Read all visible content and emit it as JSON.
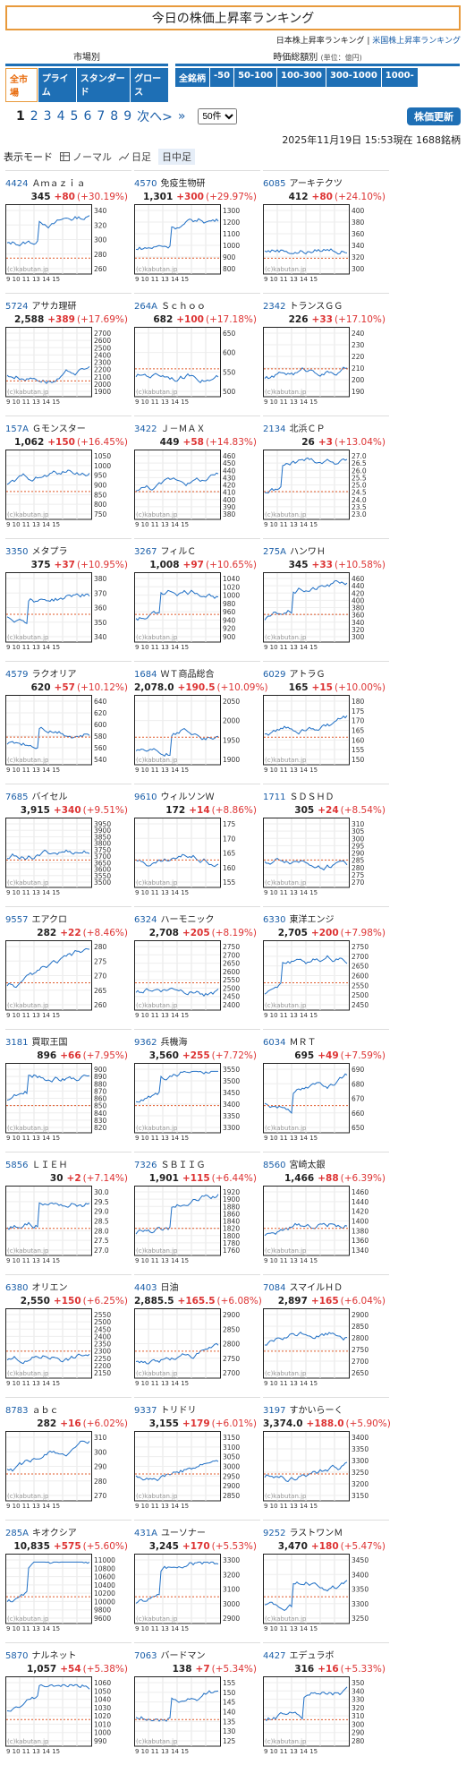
{
  "page_title": "今日の株価上昇率ランキング",
  "sublinks": {
    "jp": "日本株上昇率ランキング",
    "sep": "|",
    "us": "米国株上昇率ランキング"
  },
  "market_group": {
    "label": "市場別",
    "buttons": [
      "全市場",
      "プライム",
      "スタンダード",
      "グロース"
    ]
  },
  "price_group": {
    "label": "時価総額別",
    "unit": "(単位：億円)",
    "buttons": [
      "全銘柄",
      "-50",
      "50-100",
      "100-300",
      "300-1000",
      "1000-"
    ]
  },
  "pager": {
    "pages": [
      "1",
      "2",
      "3",
      "4",
      "5",
      "6",
      "7",
      "8",
      "9"
    ],
    "next": "次へ>",
    "last": "»",
    "per_page": "50件"
  },
  "refresh_label": "株価更新",
  "dateline": "2025年11月19日 15:53現在 1688銘柄",
  "modes": {
    "label": "表示モード",
    "normal": "ノーマル",
    "daily": "日足",
    "intraday": "日中足"
  },
  "watermark": "(c)kabutan.jp",
  "xticks": "9 10 11 13 14 15",
  "stocks": [
    {
      "code": "4424",
      "name": "Ａｍａｚｉａ",
      "price": "345",
      "change": "+80",
      "pct": "(+30.19%)",
      "ticks": [
        "340",
        "320",
        "300",
        "280",
        "260"
      ]
    },
    {
      "code": "4570",
      "name": "免疫生物研",
      "price": "1,301",
      "change": "+300",
      "pct": "(+29.97%)",
      "ticks": [
        "1300",
        "1200",
        "1100",
        "1000",
        "900",
        "800"
      ]
    },
    {
      "code": "6085",
      "name": "アーキテクツ",
      "price": "412",
      "change": "+80",
      "pct": "(+24.10%)",
      "ticks": [
        "400",
        "380",
        "360",
        "340",
        "320",
        "300"
      ]
    },
    {
      "code": "5724",
      "name": "アサカ理研",
      "price": "2,588",
      "change": "+389",
      "pct": "(+17.69%)",
      "ticks": [
        "2700",
        "2600",
        "2500",
        "2400",
        "2300",
        "2200",
        "2100",
        "2000",
        "1900"
      ]
    },
    {
      "code": "264A",
      "name": "Ｓｃｈｏｏ",
      "price": "682",
      "change": "+100",
      "pct": "(+17.18%)",
      "ticks": [
        "650",
        "600",
        "550",
        "500"
      ]
    },
    {
      "code": "2342",
      "name": "トランスＧＧ",
      "price": "226",
      "change": "+33",
      "pct": "(+17.10%)",
      "ticks": [
        "240",
        "230",
        "220",
        "210",
        "200",
        "190"
      ]
    },
    {
      "code": "157A",
      "name": "Ｇモンスター",
      "price": "1,062",
      "change": "+150",
      "pct": "(+16.45%)",
      "ticks": [
        "1050",
        "1000",
        "950",
        "900",
        "850",
        "800",
        "750"
      ]
    },
    {
      "code": "3422",
      "name": "Ｊ－ＭＡＸ",
      "price": "449",
      "change": "+58",
      "pct": "(+14.83%)",
      "ticks": [
        "460",
        "450",
        "440",
        "430",
        "420",
        "410",
        "400",
        "390",
        "380"
      ]
    },
    {
      "code": "2134",
      "name": "北浜ＣＰ",
      "price": "26",
      "change": "+3",
      "pct": "(+13.04%)",
      "ticks": [
        "27.0",
        "26.5",
        "26.0",
        "25.5",
        "25.0",
        "24.5",
        "24.0",
        "23.5",
        "23.0"
      ]
    },
    {
      "code": "3350",
      "name": "メタプラ",
      "price": "375",
      "change": "+37",
      "pct": "(+10.95%)",
      "ticks": [
        "380",
        "370",
        "360",
        "350",
        "340"
      ]
    },
    {
      "code": "3267",
      "name": "フィルＣ",
      "price": "1,008",
      "change": "+97",
      "pct": "(+10.65%)",
      "ticks": [
        "1040",
        "1020",
        "1000",
        "980",
        "960",
        "940",
        "920",
        "900"
      ]
    },
    {
      "code": "275A",
      "name": "ハンワＨ",
      "price": "345",
      "change": "+33",
      "pct": "(+10.58%)",
      "ticks": [
        "460",
        "440",
        "420",
        "400",
        "380",
        "360",
        "340",
        "320",
        "300"
      ]
    },
    {
      "code": "4579",
      "name": "ラクオリア",
      "price": "620",
      "change": "+57",
      "pct": "(+10.12%)",
      "ticks": [
        "640",
        "620",
        "600",
        "580",
        "560",
        "540"
      ]
    },
    {
      "code": "1684",
      "name": "ＷＴ商品総合",
      "price": "2,078.0",
      "change": "+190.5",
      "pct": "(+10.09%)",
      "ticks": [
        "2050",
        "2000",
        "1950",
        "1900"
      ]
    },
    {
      "code": "6029",
      "name": "アトラＧ",
      "price": "165",
      "change": "+15",
      "pct": "(+10.00%)",
      "ticks": [
        "180",
        "175",
        "170",
        "165",
        "160",
        "155",
        "150"
      ]
    },
    {
      "code": "7685",
      "name": "バイセル",
      "price": "3,915",
      "change": "+340",
      "pct": "(+9.51%)",
      "ticks": [
        "3950",
        "3900",
        "3850",
        "3800",
        "3750",
        "3700",
        "3650",
        "3600",
        "3550",
        "3500"
      ]
    },
    {
      "code": "9610",
      "name": "ウィルソンＷ",
      "price": "172",
      "change": "+14",
      "pct": "(+8.86%)",
      "ticks": [
        "175",
        "170",
        "165",
        "160",
        "155"
      ]
    },
    {
      "code": "1711",
      "name": "ＳＤＳＨＤ",
      "price": "305",
      "change": "+24",
      "pct": "(+8.54%)",
      "ticks": [
        "310",
        "305",
        "300",
        "295",
        "290",
        "285",
        "280",
        "275",
        "270"
      ]
    },
    {
      "code": "9557",
      "name": "エアクロ",
      "price": "282",
      "change": "+22",
      "pct": "(+8.46%)",
      "ticks": [
        "280",
        "275",
        "270",
        "265",
        "260"
      ]
    },
    {
      "code": "6324",
      "name": "ハーモニック",
      "price": "2,708",
      "change": "+205",
      "pct": "(+8.19%)",
      "ticks": [
        "2750",
        "2700",
        "2650",
        "2600",
        "2550",
        "2500",
        "2450",
        "2400"
      ]
    },
    {
      "code": "6330",
      "name": "東洋エンジ",
      "price": "2,705",
      "change": "+200",
      "pct": "(+7.98%)",
      "ticks": [
        "2750",
        "2700",
        "2650",
        "2600",
        "2550",
        "2500",
        "2450"
      ]
    },
    {
      "code": "3181",
      "name": "買取王国",
      "price": "896",
      "change": "+66",
      "pct": "(+7.95%)",
      "ticks": [
        "900",
        "890",
        "880",
        "870",
        "860",
        "850",
        "840",
        "830",
        "820"
      ]
    },
    {
      "code": "9362",
      "name": "兵機海",
      "price": "3,560",
      "change": "+255",
      "pct": "(+7.72%)",
      "ticks": [
        "3550",
        "3500",
        "3450",
        "3400",
        "3350",
        "3300"
      ]
    },
    {
      "code": "6034",
      "name": "ＭＲＴ",
      "price": "695",
      "change": "+49",
      "pct": "(+7.59%)",
      "ticks": [
        "690",
        "680",
        "670",
        "660",
        "650"
      ]
    },
    {
      "code": "5856",
      "name": "ＬＩＥＨ",
      "price": "30",
      "change": "+2",
      "pct": "(+7.14%)",
      "ticks": [
        "30.0",
        "29.5",
        "29.0",
        "28.5",
        "28.0",
        "27.5",
        "27.0"
      ]
    },
    {
      "code": "7326",
      "name": "ＳＢＩＩＧ",
      "price": "1,901",
      "change": "+115",
      "pct": "(+6.44%)",
      "ticks": [
        "1920",
        "1900",
        "1880",
        "1860",
        "1840",
        "1820",
        "1800",
        "1780",
        "1760"
      ]
    },
    {
      "code": "8560",
      "name": "宮崎太銀",
      "price": "1,466",
      "change": "+88",
      "pct": "(+6.39%)",
      "ticks": [
        "1460",
        "1440",
        "1420",
        "1400",
        "1380",
        "1360",
        "1340"
      ]
    },
    {
      "code": "6380",
      "name": "オリエン",
      "price": "2,550",
      "change": "+150",
      "pct": "(+6.25%)",
      "ticks": [
        "2550",
        "2500",
        "2450",
        "2400",
        "2350",
        "2300",
        "2250",
        "2200",
        "2150"
      ]
    },
    {
      "code": "4403",
      "name": "日油",
      "price": "2,885.5",
      "change": "+165.5",
      "pct": "(+6.08%)",
      "ticks": [
        "2900",
        "2850",
        "2800",
        "2750",
        "2700"
      ]
    },
    {
      "code": "7084",
      "name": "スマイルＨＤ",
      "price": "2,897",
      "change": "+165",
      "pct": "(+6.04%)",
      "ticks": [
        "2900",
        "2850",
        "2800",
        "2750",
        "2700",
        "2650"
      ]
    },
    {
      "code": "8783",
      "name": "ａｂｃ",
      "price": "282",
      "change": "+16",
      "pct": "(+6.02%)",
      "ticks": [
        "310",
        "300",
        "290",
        "280",
        "270"
      ]
    },
    {
      "code": "9337",
      "name": "トリドリ",
      "price": "3,155",
      "change": "+179",
      "pct": "(+6.01%)",
      "ticks": [
        "3150",
        "3100",
        "3050",
        "3000",
        "2950",
        "2900",
        "2850"
      ]
    },
    {
      "code": "3197",
      "name": "すかいらーく",
      "price": "3,374.0",
      "change": "+188.0",
      "pct": "(+5.90%)",
      "ticks": [
        "3400",
        "3350",
        "3300",
        "3250",
        "3200",
        "3150"
      ]
    },
    {
      "code": "285A",
      "name": "キオクシア",
      "price": "10,835",
      "change": "+575",
      "pct": "(+5.60%)",
      "ticks": [
        "11000",
        "10800",
        "10600",
        "10400",
        "10200",
        "10000",
        "9800",
        "9600"
      ]
    },
    {
      "code": "431A",
      "name": "ユーソナー",
      "price": "3,245",
      "change": "+170",
      "pct": "(+5.53%)",
      "ticks": [
        "3300",
        "3200",
        "3100",
        "3000",
        "2900"
      ]
    },
    {
      "code": "9252",
      "name": "ラストワンＭ",
      "price": "3,470",
      "change": "+180",
      "pct": "(+5.47%)",
      "ticks": [
        "3450",
        "3400",
        "3350",
        "3300",
        "3250"
      ]
    },
    {
      "code": "5870",
      "name": "ナルネット",
      "price": "1,057",
      "change": "+54",
      "pct": "(+5.38%)",
      "ticks": [
        "1060",
        "1050",
        "1040",
        "1030",
        "1020",
        "1010",
        "1000",
        "990"
      ]
    },
    {
      "code": "7063",
      "name": "バードマン",
      "price": "138",
      "change": "+7",
      "pct": "(+5.34%)",
      "ticks": [
        "155",
        "150",
        "145",
        "140",
        "135",
        "130",
        "125"
      ]
    },
    {
      "code": "4427",
      "name": "エデュラボ",
      "price": "316",
      "change": "+16",
      "pct": "(+5.33%)",
      "ticks": [
        "350",
        "340",
        "330",
        "320",
        "310",
        "300",
        "290",
        "280"
      ]
    }
  ]
}
